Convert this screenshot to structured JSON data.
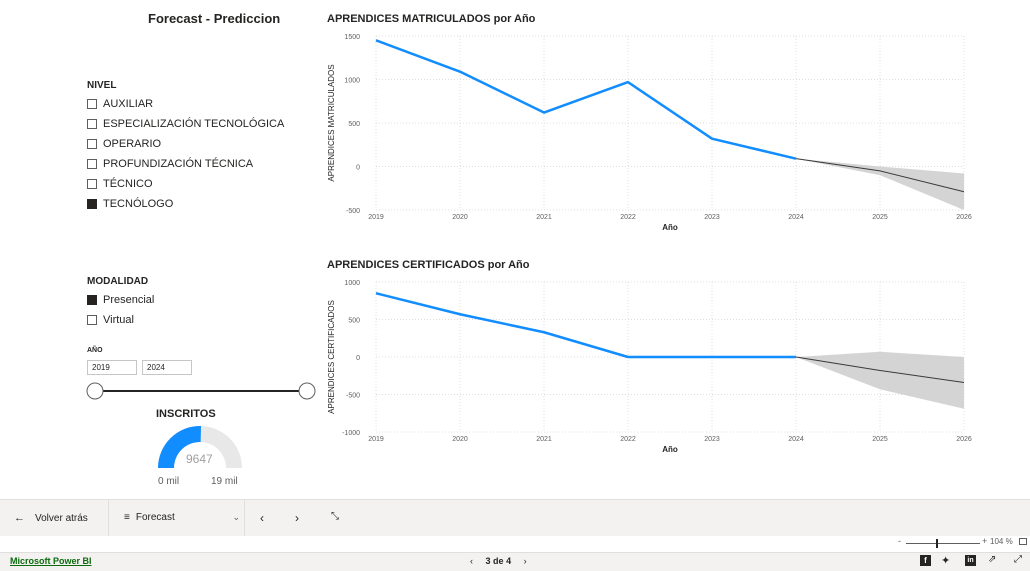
{
  "report": {
    "title": "Forecast - Prediccion"
  },
  "nivel_slicer": {
    "title": "NIVEL",
    "options": [
      {
        "label": "AUXILIAR",
        "checked": false
      },
      {
        "label": "ESPECIALIZACIÓN TECNOLÓGICA",
        "checked": false
      },
      {
        "label": "OPERARIO",
        "checked": false
      },
      {
        "label": "PROFUNDIZACIÓN TÉCNICA",
        "checked": false
      },
      {
        "label": "TÉCNICO",
        "checked": false
      },
      {
        "label": "TECNÓLOGO",
        "checked": true
      }
    ]
  },
  "modalidad_slicer": {
    "title": "MODALIDAD",
    "options": [
      {
        "label": "Presencial",
        "checked": true
      },
      {
        "label": "Virtual",
        "checked": false
      }
    ]
  },
  "year_slicer": {
    "title": "AÑO",
    "from": "2019",
    "to": "2024"
  },
  "gauge": {
    "title": "INSCRITOS",
    "value": "9647",
    "min_label": "0 mil",
    "max_label": "19 mil",
    "value_num": 9647,
    "max_num": 19000,
    "color": "#118DFF"
  },
  "chart_data": [
    {
      "type": "line",
      "title": "APRENDICES MATRICULADOS por Año",
      "xlabel": "Año",
      "ylabel": "APRENDICES MATRICULADOS",
      "x": [
        2019,
        2020,
        2021,
        2022,
        2023,
        2024,
        2025,
        2026
      ],
      "ylim": [
        -500,
        1500
      ],
      "yticks": [
        -500,
        0,
        500,
        1000,
        1500
      ],
      "series": [
        {
          "x": [
            2019,
            2020,
            2021,
            2022,
            2023,
            2024
          ],
          "values": [
            1450,
            1090,
            620,
            970,
            320,
            90
          ]
        }
      ],
      "forecast": {
        "x": [
          2024,
          2025,
          2026
        ],
        "values": [
          90,
          -50,
          -290
        ],
        "upper": [
          90,
          0,
          -80
        ],
        "lower": [
          90,
          -100,
          -500
        ]
      },
      "line_color": "#118DFF"
    },
    {
      "type": "line",
      "title": "APRENDICES CERTIFICADOS por Año",
      "xlabel": "Año",
      "ylabel": "APRENDICES CERTIFICADOS",
      "x": [
        2019,
        2020,
        2021,
        2022,
        2023,
        2024,
        2025,
        2026
      ],
      "ylim": [
        -1000,
        1000
      ],
      "yticks": [
        -1000,
        -500,
        0,
        500,
        1000
      ],
      "series": [
        {
          "x": [
            2019,
            2020,
            2021,
            2022,
            2023,
            2024
          ],
          "values": [
            850,
            570,
            330,
            0,
            0,
            0
          ]
        }
      ],
      "forecast": {
        "x": [
          2024,
          2025,
          2026
        ],
        "values": [
          0,
          -180,
          -340
        ],
        "upper": [
          0,
          70,
          0
        ],
        "lower": [
          0,
          -430,
          -690
        ]
      },
      "line_color": "#118DFF"
    }
  ],
  "bottom_bar": {
    "back_label": "Volver atrás",
    "page_select": "Forecast",
    "zoom": "104 %"
  },
  "status_bar": {
    "brand": "Microsoft Power BI",
    "page_current": "3",
    "page_of": "de",
    "page_total": "4"
  }
}
